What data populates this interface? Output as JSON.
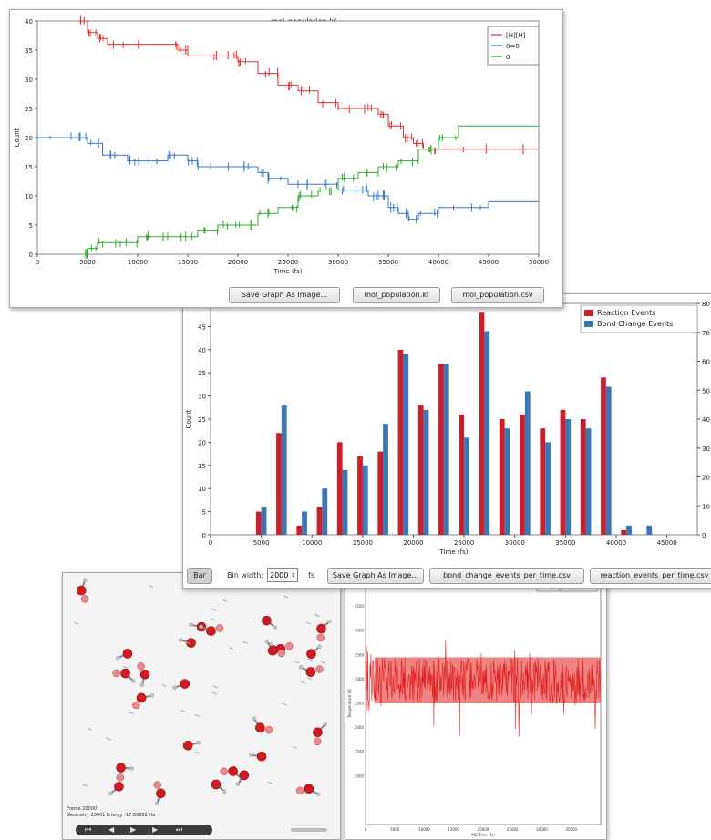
{
  "colors": {
    "red": "#e03030",
    "blue": "#3a78c0",
    "green": "#33a833",
    "bar_red": "#c8202c",
    "bar_blue": "#3b76b5",
    "temp_red": "#e0201e"
  },
  "population": {
    "window_title": "mol_population.kf",
    "buttons": {
      "save_image": "Save Graph As Image...",
      "kf": "mol_population.kf",
      "csv": "mol_population.csv"
    },
    "chart_data": {
      "type": "line",
      "title": "mol_population.kf",
      "xlabel": "Time (fs)",
      "ylabel": "Count",
      "xlim": [
        0,
        50000
      ],
      "ylim": [
        0,
        40
      ],
      "xticks": [
        0,
        5000,
        10000,
        15000,
        20000,
        25000,
        30000,
        35000,
        40000,
        45000,
        50000
      ],
      "yticks": [
        0,
        5,
        10,
        15,
        20,
        25,
        30,
        35,
        40
      ],
      "legend_position": "top-right",
      "series": [
        {
          "name": "[H][H]",
          "color": "#e03030",
          "x": [
            4300,
            5000,
            6000,
            7000,
            10000,
            14000,
            15000,
            18000,
            20000,
            22000,
            24000,
            26000,
            28000,
            30000,
            32000,
            34000,
            35000,
            36500,
            37500,
            38500,
            40000,
            50000
          ],
          "y": [
            40,
            38,
            37,
            36,
            36,
            35,
            34,
            34,
            33,
            31,
            29,
            28,
            26,
            25,
            25,
            24,
            22,
            20,
            19,
            18,
            18,
            18
          ]
        },
        {
          "name": "0=0",
          "color": "#3a78c0",
          "x": [
            0,
            4000,
            5000,
            6500,
            9000,
            10000,
            13000,
            15000,
            16000,
            20000,
            22000,
            23000,
            25000,
            27000,
            30000,
            32000,
            33000,
            34000,
            35000,
            36000,
            37000,
            38000,
            40000,
            45000,
            50000
          ],
          "y": [
            20,
            20,
            19,
            17,
            16,
            16,
            17,
            16,
            15,
            15,
            14,
            13,
            12,
            12,
            11,
            11,
            10,
            10,
            8,
            7,
            6,
            7,
            8,
            9,
            9
          ]
        },
        {
          "name": "0",
          "color": "#33a833",
          "x": [
            4800,
            5000,
            6000,
            8000,
            10000,
            12000,
            14000,
            16000,
            18000,
            20000,
            22000,
            24000,
            26000,
            28000,
            30000,
            32000,
            34000,
            36000,
            38000,
            40000,
            42000,
            50000
          ],
          "y": [
            0,
            1,
            2,
            2,
            3,
            3,
            3,
            4,
            5,
            5,
            7,
            8,
            10,
            11,
            13,
            14,
            15,
            16,
            18,
            20,
            22,
            22
          ]
        }
      ]
    }
  },
  "events": {
    "buttons": {
      "bar_select": "Bar",
      "bin_label": "Bin width:",
      "bin_value": "2000",
      "bin_unit": "fs",
      "save_image": "Save Graph As Image...",
      "bond_csv": "bond_change_events_per_time.csv",
      "reaction_csv": "reaction_events_per_time.csv"
    },
    "chart_data": {
      "type": "bar",
      "xlabel": "Time (fs)",
      "ylabel": "Count",
      "xlim": [
        0,
        48000
      ],
      "ylim": [
        0,
        50
      ],
      "y2lim": [
        0,
        80
      ],
      "xticks": [
        0,
        5000,
        10000,
        15000,
        20000,
        25000,
        30000,
        35000,
        40000,
        45000
      ],
      "yticks": [
        0,
        5,
        10,
        15,
        20,
        25,
        30,
        35,
        40,
        45
      ],
      "y2ticks": [
        0,
        10,
        20,
        30,
        40,
        50,
        60,
        70,
        80
      ],
      "legend_position": "top-right",
      "x": [
        5000,
        7000,
        9000,
        11000,
        13000,
        15000,
        17000,
        19000,
        21000,
        23000,
        25000,
        27000,
        29000,
        31000,
        33000,
        35000,
        37000,
        39000,
        41000,
        43000
      ],
      "series": [
        {
          "name": "Reaction Events",
          "color": "#c8202c",
          "values": [
            5,
            22,
            2,
            6,
            20,
            17,
            18,
            40,
            28,
            37,
            26,
            48,
            25,
            26,
            23,
            27,
            25,
            34,
            1,
            0
          ]
        },
        {
          "name": "Bond Change Events",
          "color": "#3b76b5",
          "values": [
            6,
            28,
            5,
            10,
            14,
            15,
            24,
            39,
            27,
            37,
            21,
            44,
            23,
            31,
            20,
            25,
            23,
            32,
            2,
            2
          ]
        }
      ]
    }
  },
  "viewer": {
    "info_line1": "Frame 20000",
    "info_line2": "Geometry 20001 Energy -17.89802 Ha",
    "controls": [
      "first",
      "prev",
      "play",
      "next",
      "last"
    ]
  },
  "temperature": {
    "legend": "— Temperature",
    "chart_data": {
      "type": "line",
      "xlabel": "MD Time (fs)",
      "ylabel": "Temperature (K)",
      "xlim": [
        0,
        40000
      ],
      "ylim": [
        0,
        5000
      ],
      "xticks": [
        0,
        5000,
        10000,
        15000,
        20000,
        25000,
        30000,
        35000
      ],
      "yticks": [
        1000,
        1500,
        2000,
        2500,
        3000,
        3500,
        4000,
        4500
      ],
      "series": [
        {
          "name": "Temperature",
          "color": "#e0201e",
          "mean": 3000,
          "band": [
            2500,
            3450
          ]
        }
      ]
    }
  }
}
